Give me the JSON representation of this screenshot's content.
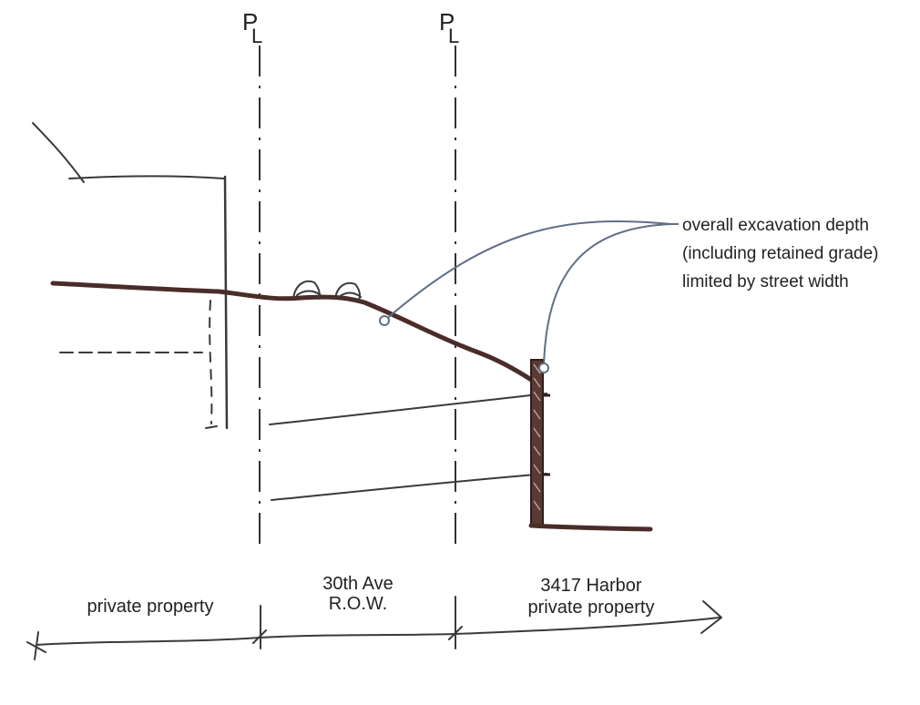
{
  "property_line_markers": [
    {
      "p": "P",
      "l": "L"
    },
    {
      "p": "P",
      "l": "L"
    }
  ],
  "annotation": {
    "lines": [
      "overall excavation depth",
      "(including retained grade)",
      "limited by street width"
    ]
  },
  "zones": [
    {
      "lines": [
        "private property"
      ]
    },
    {
      "lines": [
        "30th Ave",
        "R.O.W."
      ]
    },
    {
      "lines": [
        "3417 Harbor",
        "private property"
      ]
    }
  ],
  "colors": {
    "ground": "#4a2c28",
    "leader": "#5f6f85",
    "ink": "#3a3a3a"
  }
}
